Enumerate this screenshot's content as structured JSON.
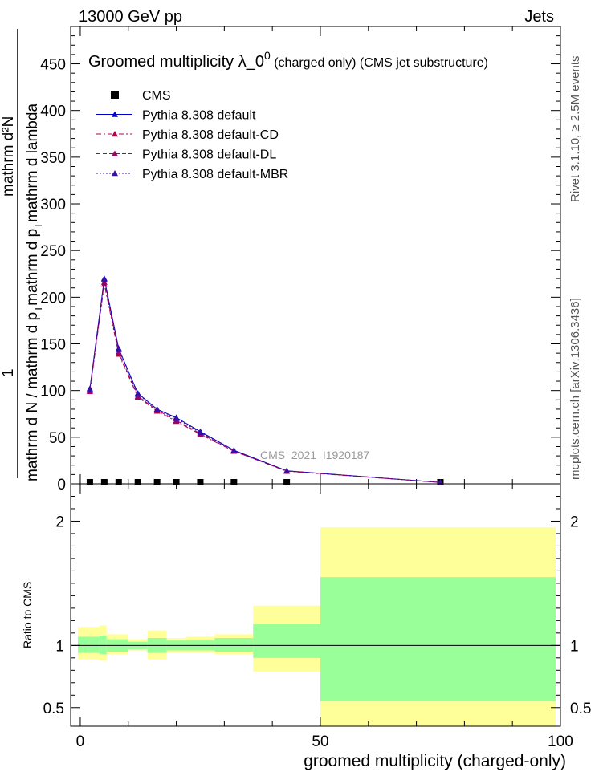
{
  "header": {
    "left": "13000 GeV pp",
    "right": "Jets"
  },
  "side_labels": {
    "rivet": "Rivet 3.1.10, ≥ 2.5M events",
    "mcplots": "mcplots.cern.ch [arXiv:1306.3436]"
  },
  "main_plot": {
    "title_main": "Groomed multiplicity   λ_0",
    "title_sup": "0",
    "title_tail": " (charged only) (CMS jet substructure)",
    "ylabel_numerator": "1",
    "ylabel_part1": "mathrm d N / mathrm d p",
    "ylabel_sub1": "T",
    "ylabel_part2": "mathrm d p",
    "ylabel_sub2": "T",
    "ylabel_part3": "mathrm d lambda",
    "ylabel_top": "mathrm d²N",
    "watermark": "CMS_2021_I1920187",
    "ylim": [
      0,
      490
    ],
    "yticks": [
      0,
      50,
      100,
      150,
      200,
      250,
      300,
      350,
      400,
      450
    ],
    "ytick_labels": [
      "0",
      "50",
      "100",
      "150",
      "200",
      "250",
      "300",
      "350",
      "400",
      "450"
    ]
  },
  "ratio_plot": {
    "ylabel": "Ratio to CMS",
    "ylim": [
      0.35,
      2.3
    ],
    "yticks": [
      0.5,
      1,
      2
    ],
    "ytick_labels": [
      "0.5",
      "1",
      "2"
    ]
  },
  "xaxis": {
    "label": "groomed multiplicity (charged-only)",
    "xlim": [
      -2,
      100
    ],
    "xticks": [
      0,
      50,
      100
    ],
    "xtick_labels": [
      "0",
      "50",
      "100"
    ]
  },
  "legend": {
    "position": "top-left",
    "entries": [
      {
        "label": "CMS",
        "marker": "square",
        "color": "#000000",
        "line": "none"
      },
      {
        "label": "Pythia 8.308 default",
        "marker": "triangle",
        "color": "#0000cc",
        "line": "solid"
      },
      {
        "label": "Pythia 8.308 default-CD",
        "marker": "triangle",
        "color": "#b2004a",
        "line": "dashdot"
      },
      {
        "label": "Pythia 8.308 default-DL",
        "marker": "triangle",
        "color": "#a0006a",
        "line": "dashed"
      },
      {
        "label": "Pythia 8.308 default-MBR",
        "marker": "triangle",
        "color": "#3a10a0",
        "line": "dotted"
      }
    ]
  },
  "chart_data": {
    "type": "line",
    "x": [
      2,
      5,
      8,
      12,
      16,
      20,
      25,
      32,
      43,
      75
    ],
    "bin_edges": [
      0,
      4,
      6,
      10,
      14,
      18,
      22,
      28,
      36,
      50,
      100
    ],
    "series": [
      {
        "name": "CMS",
        "values": [
          0.4,
          0.5,
          0.5,
          0.4,
          0.4,
          0.3,
          0.3,
          0.2,
          0.1,
          0.02
        ]
      },
      {
        "name": "Pythia 8.308 default",
        "values": [
          102,
          220,
          145,
          97,
          80,
          71,
          56,
          36,
          14,
          1.5
        ]
      },
      {
        "name": "Pythia 8.308 default-CD",
        "values": [
          99,
          214,
          139,
          93,
          78,
          67,
          53,
          35,
          13.5,
          1.5
        ]
      },
      {
        "name": "Pythia 8.308 default-DL",
        "values": [
          100,
          216,
          141,
          94,
          79,
          68,
          54,
          35,
          13.8,
          1.5
        ]
      },
      {
        "name": "Pythia 8.308 default-MBR",
        "values": [
          101,
          219,
          144,
          96,
          80,
          70,
          55,
          36,
          14,
          1.5
        ]
      }
    ],
    "ratio_bands": [
      {
        "x0": -0.5,
        "x1": 4,
        "inner": [
          0.94,
          1.07
        ],
        "outer": [
          0.89,
          1.15
        ]
      },
      {
        "x0": 4,
        "x1": 5.5,
        "inner": [
          0.93,
          1.08
        ],
        "outer": [
          0.88,
          1.16
        ]
      },
      {
        "x0": 5.5,
        "x1": 10,
        "inner": [
          0.95,
          1.05
        ],
        "outer": [
          0.93,
          1.09
        ]
      },
      {
        "x0": 10,
        "x1": 14,
        "inner": [
          0.97,
          1.03
        ],
        "outer": [
          0.96,
          1.05
        ]
      },
      {
        "x0": 14,
        "x1": 18,
        "inner": [
          0.94,
          1.06
        ],
        "outer": [
          0.89,
          1.12
        ]
      },
      {
        "x0": 18,
        "x1": 22,
        "inner": [
          0.96,
          1.04
        ],
        "outer": [
          0.94,
          1.06
        ]
      },
      {
        "x0": 22,
        "x1": 28,
        "inner": [
          0.96,
          1.04
        ],
        "outer": [
          0.94,
          1.07
        ]
      },
      {
        "x0": 28,
        "x1": 36,
        "inner": [
          0.95,
          1.06
        ],
        "outer": [
          0.93,
          1.09
        ]
      },
      {
        "x0": 36,
        "x1": 50,
        "inner": [
          0.9,
          1.17
        ],
        "outer": [
          0.79,
          1.32
        ]
      },
      {
        "x0": 50,
        "x1": 99,
        "inner": [
          0.55,
          1.55
        ],
        "outer": [
          0.3,
          1.95
        ]
      }
    ],
    "ratio_band_colors": {
      "inner": "#99ff99",
      "outer": "#ffff99"
    },
    "reference_line": 1
  }
}
